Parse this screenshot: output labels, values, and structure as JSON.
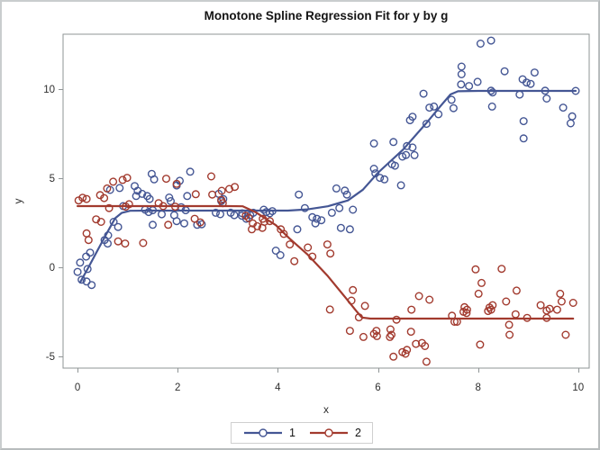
{
  "chart_data": {
    "type": "scatter",
    "title": "Monotone Spline Regression Fit for y by g",
    "xlabel": "x",
    "ylabel": "y",
    "x_ticks": [
      0,
      2,
      4,
      6,
      8,
      10
    ],
    "y_ticks": [
      -5,
      0,
      5,
      10
    ],
    "xlim": [
      -0.29,
      10.22
    ],
    "ylim": [
      -5.66,
      13.08
    ],
    "grid": false,
    "legend_position": "bottom-center",
    "frame_color": "#8f9495",
    "tick_label_color": "#2e2e2e",
    "series": [
      {
        "name": "1",
        "color": "#445694",
        "marker": "open-circle",
        "fit_line": [
          [
            0.05,
            -0.85
          ],
          [
            0.2,
            -0.1
          ],
          [
            0.4,
            0.95
          ],
          [
            0.6,
            2.0
          ],
          [
            0.75,
            2.75
          ],
          [
            0.88,
            3.05
          ],
          [
            1.05,
            3.17
          ],
          [
            1.5,
            3.18
          ],
          [
            3.0,
            3.18
          ],
          [
            4.2,
            3.18
          ],
          [
            4.6,
            3.25
          ],
          [
            5.0,
            3.42
          ],
          [
            5.4,
            3.75
          ],
          [
            5.7,
            4.35
          ],
          [
            6.0,
            5.3
          ],
          [
            6.5,
            6.6
          ],
          [
            7.0,
            8.2
          ],
          [
            7.25,
            9.05
          ],
          [
            7.45,
            9.7
          ],
          [
            7.6,
            9.88
          ],
          [
            8.0,
            9.9
          ],
          [
            9.95,
            9.9
          ]
        ],
        "points": [
          [
            0.05,
            0.26
          ],
          [
            0.17,
            0.6
          ],
          [
            0.2,
            -0.1
          ],
          [
            0.0,
            -0.26
          ],
          [
            0.08,
            -0.7
          ],
          [
            0.18,
            -0.8
          ],
          [
            0.28,
            -1.0
          ],
          [
            0.25,
            0.82
          ],
          [
            0.54,
            1.53
          ],
          [
            0.6,
            1.33
          ],
          [
            0.61,
            1.79
          ],
          [
            0.65,
            4.34
          ],
          [
            0.72,
            2.55
          ],
          [
            0.81,
            2.26
          ],
          [
            0.84,
            4.45
          ],
          [
            0.91,
            3.43
          ],
          [
            1.14,
            4.56
          ],
          [
            1.17,
            4.0
          ],
          [
            1.2,
            4.29
          ],
          [
            1.29,
            4.12
          ],
          [
            1.35,
            3.23
          ],
          [
            1.39,
            4.0
          ],
          [
            1.42,
            3.1
          ],
          [
            1.44,
            3.83
          ],
          [
            1.48,
            5.24
          ],
          [
            1.5,
            3.2
          ],
          [
            1.5,
            2.38
          ],
          [
            1.53,
            4.93
          ],
          [
            1.68,
            2.97
          ],
          [
            1.83,
            3.91
          ],
          [
            1.86,
            3.71
          ],
          [
            1.93,
            2.92
          ],
          [
            1.98,
            4.59
          ],
          [
            1.98,
            2.59
          ],
          [
            2.04,
            4.85
          ],
          [
            2.07,
            3.37
          ],
          [
            2.13,
            2.46
          ],
          [
            2.16,
            3.2
          ],
          [
            2.19,
            4.0
          ],
          [
            2.25,
            5.36
          ],
          [
            2.39,
            2.38
          ],
          [
            2.48,
            2.41
          ],
          [
            2.76,
            3.06
          ],
          [
            2.82,
            4.12
          ],
          [
            2.85,
            2.98
          ],
          [
            2.87,
            3.71
          ],
          [
            2.91,
            3.83
          ],
          [
            3.06,
            3.06
          ],
          [
            3.13,
            2.92
          ],
          [
            3.28,
            2.89
          ],
          [
            3.29,
            3.03
          ],
          [
            3.37,
            2.72
          ],
          [
            3.45,
            2.92
          ],
          [
            3.51,
            3.06
          ],
          [
            3.72,
            3.23
          ],
          [
            3.77,
            3.1
          ],
          [
            3.84,
            3.03
          ],
          [
            3.89,
            3.15
          ],
          [
            3.96,
            0.93
          ],
          [
            4.05,
            0.68
          ],
          [
            4.39,
            2.13
          ],
          [
            4.42,
            4.08
          ],
          [
            4.54,
            3.32
          ],
          [
            4.69,
            2.81
          ],
          [
            4.75,
            2.46
          ],
          [
            4.78,
            2.72
          ],
          [
            4.87,
            2.64
          ],
          [
            5.08,
            3.06
          ],
          [
            5.17,
            4.42
          ],
          [
            5.23,
            3.32
          ],
          [
            5.26,
            2.21
          ],
          [
            5.34,
            4.3
          ],
          [
            5.38,
            4.08
          ],
          [
            5.44,
            2.13
          ],
          [
            5.5,
            3.23
          ],
          [
            5.92,
            6.95
          ],
          [
            5.92,
            5.53
          ],
          [
            5.95,
            5.27
          ],
          [
            6.04,
            5.02
          ],
          [
            6.13,
            4.93
          ],
          [
            6.28,
            5.78
          ],
          [
            6.31,
            7.03
          ],
          [
            6.34,
            5.7
          ],
          [
            6.46,
            4.6
          ],
          [
            6.49,
            6.21
          ],
          [
            6.56,
            6.3
          ],
          [
            6.58,
            6.8
          ],
          [
            6.64,
            8.25
          ],
          [
            6.69,
            6.72
          ],
          [
            6.69,
            8.45
          ],
          [
            6.73,
            6.29
          ],
          [
            6.91,
            9.74
          ],
          [
            6.97,
            8.05
          ],
          [
            7.03,
            8.96
          ],
          [
            7.12,
            9.02
          ],
          [
            7.21,
            8.59
          ],
          [
            7.47,
            9.4
          ],
          [
            7.51,
            8.93
          ],
          [
            7.66,
            10.26
          ],
          [
            7.67,
            11.26
          ],
          [
            7.67,
            10.83
          ],
          [
            7.82,
            10.17
          ],
          [
            7.99,
            10.41
          ],
          [
            8.05,
            12.55
          ],
          [
            8.26,
            12.72
          ],
          [
            8.26,
            9.91
          ],
          [
            8.29,
            9.81
          ],
          [
            8.28,
            9.02
          ],
          [
            8.53,
            11.0
          ],
          [
            8.83,
            9.69
          ],
          [
            8.89,
            10.55
          ],
          [
            8.91,
            8.2
          ],
          [
            8.91,
            7.23
          ],
          [
            8.97,
            10.37
          ],
          [
            9.05,
            10.29
          ],
          [
            9.13,
            10.93
          ],
          [
            9.34,
            9.91
          ],
          [
            9.37,
            9.47
          ],
          [
            9.7,
            8.96
          ],
          [
            9.85,
            8.08
          ],
          [
            9.88,
            8.47
          ],
          [
            9.95,
            9.9
          ]
        ]
      },
      {
        "name": "2",
        "color": "#a23a2e",
        "marker": "open-circle",
        "fit_line": [
          [
            0.0,
            3.43
          ],
          [
            1.5,
            3.43
          ],
          [
            3.0,
            3.43
          ],
          [
            3.3,
            3.42
          ],
          [
            3.55,
            3.1
          ],
          [
            3.96,
            2.36
          ],
          [
            4.24,
            1.6
          ],
          [
            4.6,
            0.7
          ],
          [
            5.0,
            -0.5
          ],
          [
            5.35,
            -1.7
          ],
          [
            5.58,
            -2.5
          ],
          [
            5.68,
            -2.82
          ],
          [
            5.85,
            -2.88
          ],
          [
            7.0,
            -2.88
          ],
          [
            8.5,
            -2.88
          ],
          [
            9.9,
            -2.88
          ]
        ],
        "points": [
          [
            0.02,
            3.75
          ],
          [
            0.1,
            3.9
          ],
          [
            0.18,
            3.83
          ],
          [
            0.18,
            1.9
          ],
          [
            0.22,
            1.53
          ],
          [
            0.37,
            2.69
          ],
          [
            0.45,
            4.05
          ],
          [
            0.47,
            2.55
          ],
          [
            0.53,
            3.88
          ],
          [
            0.59,
            4.42
          ],
          [
            0.63,
            3.32
          ],
          [
            0.71,
            4.8
          ],
          [
            0.81,
            1.45
          ],
          [
            0.9,
            4.9
          ],
          [
            0.95,
            1.33
          ],
          [
            0.96,
            3.4
          ],
          [
            0.99,
            5.02
          ],
          [
            1.03,
            3.54
          ],
          [
            1.31,
            1.36
          ],
          [
            1.62,
            3.6
          ],
          [
            1.71,
            3.43
          ],
          [
            1.77,
            4.97
          ],
          [
            1.81,
            2.38
          ],
          [
            1.95,
            3.4
          ],
          [
            1.98,
            4.68
          ],
          [
            2.34,
            2.72
          ],
          [
            2.36,
            4.1
          ],
          [
            2.45,
            2.52
          ],
          [
            2.67,
            5.1
          ],
          [
            2.69,
            4.08
          ],
          [
            2.87,
            3.78
          ],
          [
            2.88,
            4.29
          ],
          [
            2.9,
            3.6
          ],
          [
            3.03,
            4.39
          ],
          [
            3.14,
            4.51
          ],
          [
            3.36,
            2.89
          ],
          [
            3.42,
            2.76
          ],
          [
            3.48,
            2.13
          ],
          [
            3.5,
            2.46
          ],
          [
            3.59,
            2.3
          ],
          [
            3.69,
            2.21
          ],
          [
            3.7,
            2.72
          ],
          [
            3.73,
            2.55
          ],
          [
            3.84,
            2.59
          ],
          [
            4.06,
            2.13
          ],
          [
            4.12,
            1.87
          ],
          [
            4.24,
            1.28
          ],
          [
            4.33,
            0.34
          ],
          [
            4.6,
            1.11
          ],
          [
            4.69,
            0.6
          ],
          [
            4.99,
            1.28
          ],
          [
            5.05,
            0.77
          ],
          [
            5.04,
            -2.37
          ],
          [
            5.44,
            -3.57
          ],
          [
            5.47,
            -1.87
          ],
          [
            5.5,
            -1.28
          ],
          [
            5.62,
            -2.81
          ],
          [
            5.71,
            -3.91
          ],
          [
            5.74,
            -2.17
          ],
          [
            5.92,
            -3.74
          ],
          [
            5.97,
            -3.57
          ],
          [
            5.98,
            -3.86
          ],
          [
            6.24,
            -3.91
          ],
          [
            6.25,
            -3.49
          ],
          [
            6.27,
            -3.79
          ],
          [
            6.31,
            -5.02
          ],
          [
            6.37,
            -2.94
          ],
          [
            6.49,
            -4.76
          ],
          [
            6.55,
            -4.85
          ],
          [
            6.58,
            -4.64
          ],
          [
            6.66,
            -3.62
          ],
          [
            6.67,
            -2.38
          ],
          [
            6.76,
            -4.3
          ],
          [
            6.82,
            -1.62
          ],
          [
            6.88,
            -4.25
          ],
          [
            6.94,
            -4.42
          ],
          [
            6.97,
            -5.3
          ],
          [
            7.03,
            -1.82
          ],
          [
            7.48,
            -2.72
          ],
          [
            7.53,
            -3.06
          ],
          [
            7.58,
            -3.06
          ],
          [
            7.71,
            -2.5
          ],
          [
            7.73,
            -2.24
          ],
          [
            7.77,
            -2.57
          ],
          [
            7.78,
            -2.38
          ],
          [
            7.95,
            -0.12
          ],
          [
            8.01,
            -1.49
          ],
          [
            8.04,
            -4.34
          ],
          [
            8.07,
            -0.88
          ],
          [
            8.2,
            -2.46
          ],
          [
            8.23,
            -2.26
          ],
          [
            8.26,
            -2.38
          ],
          [
            8.29,
            -2.13
          ],
          [
            8.47,
            -0.09
          ],
          [
            8.56,
            -1.92
          ],
          [
            8.62,
            -3.23
          ],
          [
            8.63,
            -3.79
          ],
          [
            8.75,
            -2.64
          ],
          [
            8.77,
            -1.31
          ],
          [
            8.98,
            -2.84
          ],
          [
            9.25,
            -2.13
          ],
          [
            9.37,
            -2.43
          ],
          [
            9.37,
            -2.84
          ],
          [
            9.43,
            -2.33
          ],
          [
            9.58,
            -2.38
          ],
          [
            9.64,
            -1.49
          ],
          [
            9.67,
            -1.92
          ],
          [
            9.75,
            -3.79
          ],
          [
            9.9,
            -2.0
          ]
        ]
      }
    ]
  }
}
